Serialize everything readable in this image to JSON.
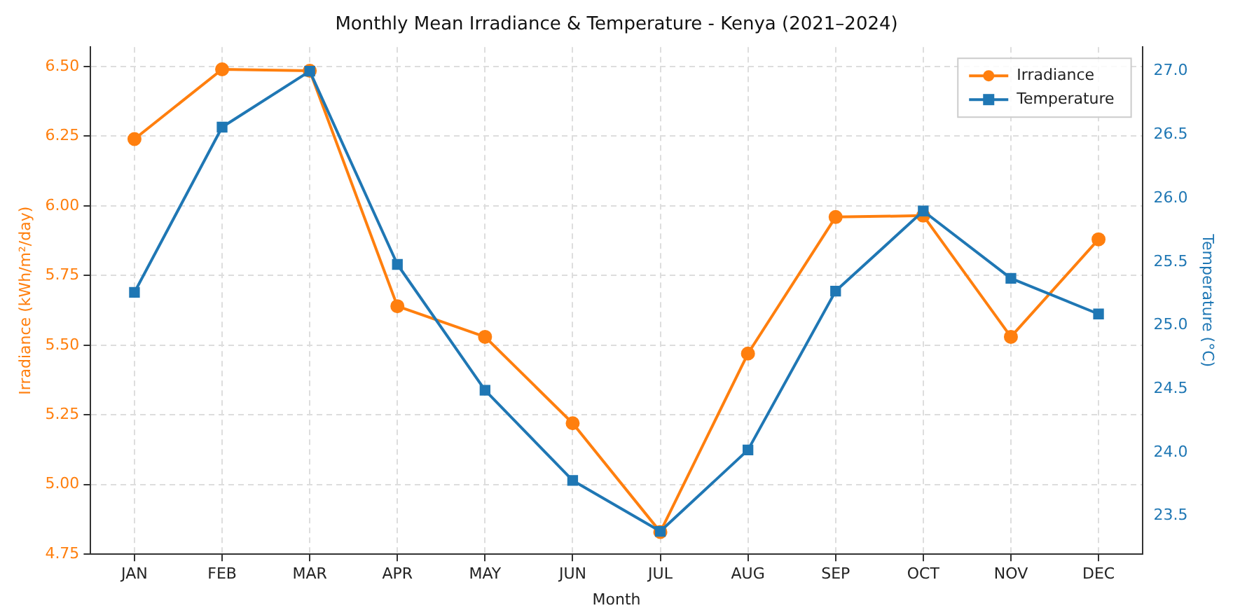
{
  "chart_data": {
    "type": "line",
    "title": "Monthly Mean Irradiance & Temperature - Kenya (2021–2024)",
    "xlabel": "Month",
    "ylabel": "Irradiance (kWh/m²/day)",
    "y2label": "Temperature (°C)",
    "categories": [
      "JAN",
      "FEB",
      "MAR",
      "APR",
      "MAY",
      "JUN",
      "JUL",
      "AUG",
      "SEP",
      "OCT",
      "NOV",
      "DEC"
    ],
    "series": [
      {
        "name": "Irradiance",
        "color": "#ff7f0e",
        "marker": "circle",
        "values": [
          6.24,
          6.49,
          6.485,
          5.64,
          5.53,
          5.22,
          4.83,
          5.47,
          5.96,
          5.965,
          5.53,
          5.88
        ]
      },
      {
        "name": "Temperature",
        "color": "#1f77b4",
        "marker": "square",
        "axis": "y2",
        "values": [
          25.26,
          26.56,
          27.0,
          25.48,
          24.49,
          23.78,
          23.38,
          24.02,
          25.27,
          25.9,
          25.37,
          25.09
        ]
      }
    ],
    "ylim": [
      4.75,
      6.57
    ],
    "yticks": [
      {
        "value": 4.75,
        "label": "4.75"
      },
      {
        "value": 5,
        "label": "5.00"
      },
      {
        "value": 5.25,
        "label": "5.25"
      },
      {
        "value": 5.5,
        "label": "5.50"
      },
      {
        "value": 5.75,
        "label": "5.75"
      },
      {
        "value": 6,
        "label": "6.00"
      },
      {
        "value": 6.25,
        "label": "6.25"
      },
      {
        "value": 6.5,
        "label": "6.50"
      }
    ],
    "y2lim": [
      23.2,
      27.19
    ],
    "y2ticks": [
      {
        "value": 23.5,
        "label": "23.5"
      },
      {
        "value": 24,
        "label": "24.0"
      },
      {
        "value": 24.5,
        "label": "24.5"
      },
      {
        "value": 25,
        "label": "25.0"
      },
      {
        "value": 25.5,
        "label": "25.5"
      },
      {
        "value": 26,
        "label": "26.0"
      },
      {
        "value": 26.5,
        "label": "26.5"
      },
      {
        "value": 27,
        "label": "27.0"
      }
    ],
    "grid": true,
    "legend": "top right",
    "line_style": "solid"
  }
}
